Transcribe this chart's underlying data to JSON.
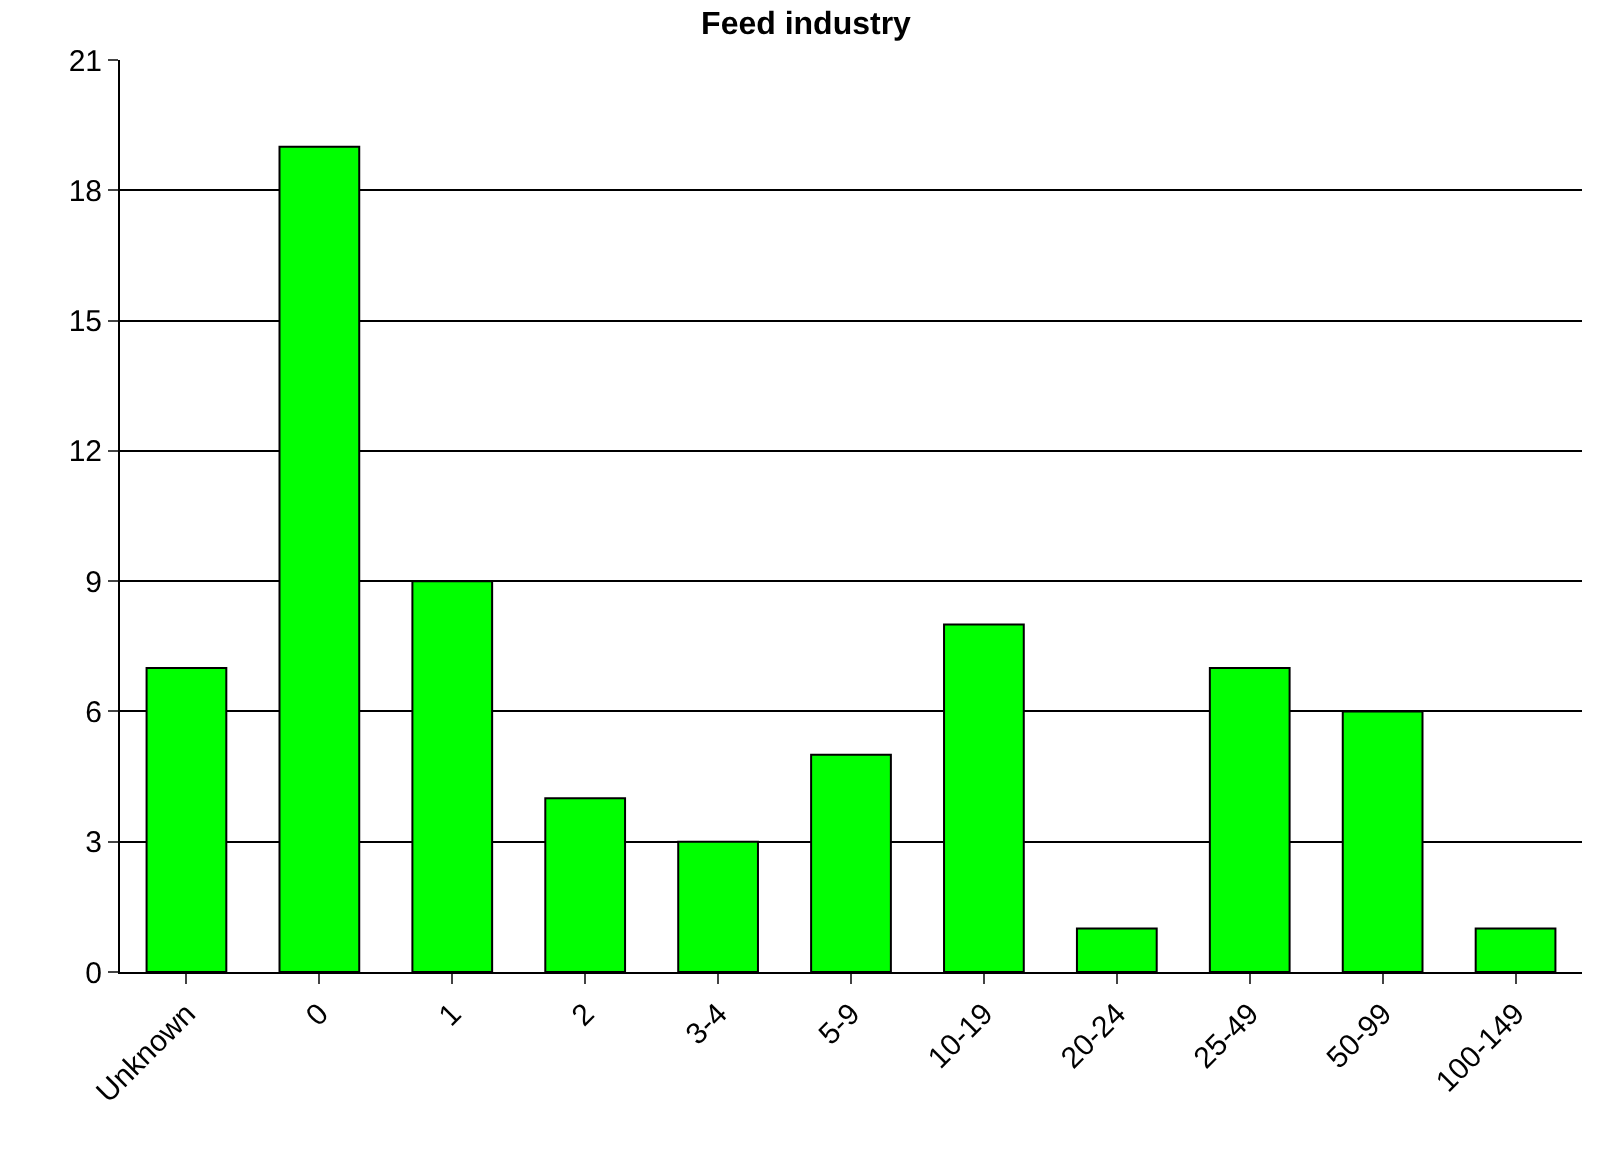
{
  "chart_data": {
    "type": "bar",
    "title": "Feed industry",
    "categories": [
      "Unknown",
      "0",
      "1",
      "2",
      "3-4",
      "5-9",
      "10-19",
      "20-24",
      "25-49",
      "50-99",
      "100-149"
    ],
    "values": [
      7,
      19,
      9,
      4,
      3,
      5,
      8,
      1,
      7,
      6,
      1
    ],
    "color": "#00ff00",
    "ylim": [
      0,
      21
    ],
    "yticks": [
      0,
      3,
      6,
      9,
      12,
      15,
      18,
      21
    ],
    "grid": "y"
  }
}
